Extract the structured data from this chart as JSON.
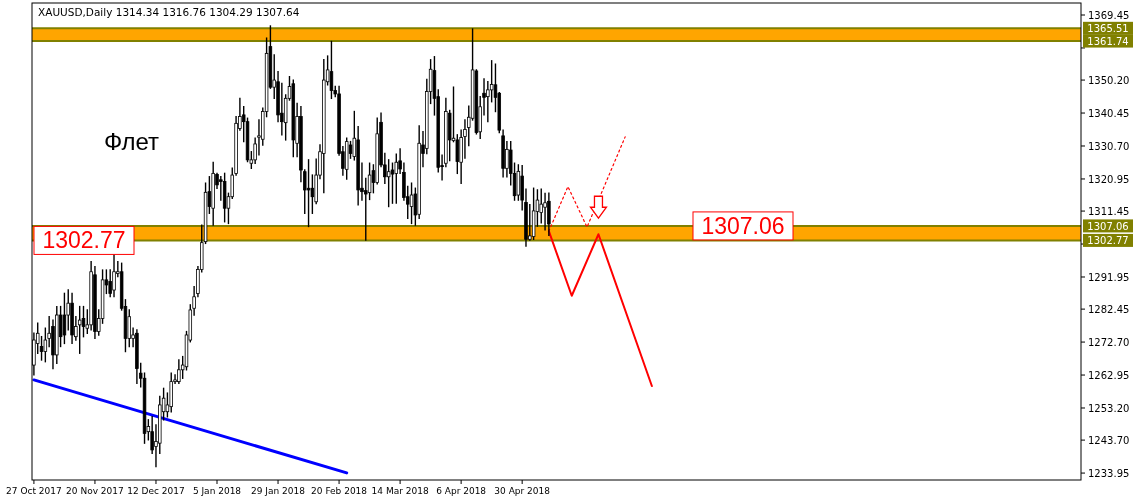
{
  "chart_data": {
    "type": "candlestick",
    "title": "XAUUSD,Daily 1314.34 1316.76 1304.29 1307.64",
    "categories": [
      "27 Oct 2017",
      null,
      null,
      null,
      null,
      null,
      null,
      null,
      null,
      null,
      null,
      null,
      null,
      null,
      null,
      null,
      "20 Nov 2017",
      null,
      null,
      null,
      null,
      null,
      null,
      null,
      null,
      null,
      null,
      null,
      null,
      null,
      null,
      null,
      "12 Dec 2017",
      null,
      null,
      null,
      null,
      null,
      null,
      null,
      null,
      null,
      null,
      null,
      null,
      null,
      null,
      null,
      "5 Jan 2018",
      null,
      null,
      null,
      null,
      null,
      null,
      null,
      null,
      null,
      null,
      null,
      null,
      null,
      null,
      null,
      "29 Jan 2018",
      null,
      null,
      null,
      null,
      null,
      null,
      null,
      null,
      null,
      null,
      null,
      null,
      null,
      null,
      null,
      "20 Feb 2018",
      null,
      null,
      null,
      null,
      null,
      null,
      null,
      null,
      null,
      null,
      null,
      null,
      null,
      null,
      null,
      "14 Mar 2018",
      null,
      null,
      null,
      null,
      null,
      null,
      null,
      null,
      null,
      null,
      null,
      null,
      null,
      null,
      null,
      "6 Apr 2018",
      null,
      null,
      null,
      null,
      null,
      null,
      null,
      null,
      null,
      null,
      null,
      null,
      null,
      null,
      null,
      "30 Apr 2018",
      null,
      null,
      null,
      null,
      null,
      null,
      null,
      null,
      null,
      null,
      null,
      null,
      null,
      null,
      null,
      null,
      null,
      null,
      null,
      null,
      null,
      null,
      null,
      null,
      null,
      null,
      null,
      null,
      null,
      null,
      null,
      null,
      null,
      null,
      null,
      null,
      null,
      null,
      null,
      null,
      null,
      null,
      null,
      null,
      null,
      null,
      null,
      null,
      null,
      null,
      null,
      null,
      null,
      null,
      null,
      null,
      null,
      null,
      null,
      null,
      null,
      null,
      null,
      null,
      null,
      null,
      null,
      null,
      null,
      null,
      null,
      null,
      null,
      null,
      null,
      null,
      null,
      null,
      null,
      null,
      null,
      null,
      null,
      null,
      null,
      null,
      null,
      null,
      null,
      null,
      null,
      null,
      null,
      null,
      null,
      null,
      null,
      null,
      null,
      null,
      null,
      null,
      null,
      null,
      null,
      null,
      null,
      null,
      null,
      null,
      null,
      null,
      null,
      null,
      null,
      null,
      null,
      null,
      null,
      null,
      null,
      null,
      null,
      null,
      null,
      null,
      null,
      null,
      null,
      null,
      null,
      null,
      null,
      null,
      null,
      null,
      null,
      null,
      null,
      null,
      null,
      null,
      null,
      null,
      null,
      null
    ],
    "ohlc": [
      [
        1265.9,
        1275.3,
        1263.0,
        1273.3
      ],
      [
        1272.3,
        1278.3,
        1269.4,
        1275.3
      ],
      [
        1271.4,
        1274.3,
        1267.4,
        1269.9
      ],
      [
        1269.9,
        1276.8,
        1266.9,
        1273.3
      ],
      [
        1273.8,
        1280.2,
        1271.4,
        1275.3
      ],
      [
        1277.3,
        1279.2,
        1264.9,
        1268.9
      ],
      [
        1268.9,
        1283.2,
        1266.4,
        1280.7
      ],
      [
        1280.7,
        1283.2,
        1271.4,
        1274.3
      ],
      [
        1280.7,
        1287.1,
        1272.3,
        1274.8
      ],
      [
        1280.7,
        1288.1,
        1276.3,
        1284.2
      ],
      [
        1284.2,
        1287.1,
        1272.3,
        1274.8
      ],
      [
        1274.3,
        1280.2,
        1273.3,
        1277.3
      ],
      [
        1277.8,
        1283.2,
        1269.4,
        1279.2
      ],
      [
        1279.7,
        1283.2,
        1274.3,
        1277.3
      ],
      [
        1276.8,
        1282.2,
        1275.3,
        1277.8
      ],
      [
        1277.8,
        1296.5,
        1276.3,
        1293.5
      ],
      [
        1292.6,
        1295.0,
        1273.8,
        1275.8
      ],
      [
        1275.8,
        1282.2,
        1274.8,
        1279.7
      ],
      [
        1279.7,
        1294.0,
        1278.3,
        1291.1
      ],
      [
        1291.1,
        1294.0,
        1287.1,
        1289.6
      ],
      [
        1290.6,
        1294.0,
        1286.2,
        1287.1
      ],
      [
        1288.1,
        1299.0,
        1286.2,
        1293.5
      ],
      [
        1293.0,
        1296.5,
        1292.1,
        1293.5
      ],
      [
        1293.5,
        1296.0,
        1282.2,
        1282.7
      ],
      [
        1283.2,
        1285.2,
        1269.9,
        1273.8
      ],
      [
        1273.8,
        1282.2,
        1271.4,
        1280.2
      ],
      [
        1273.8,
        1276.8,
        1271.4,
        1274.8
      ],
      [
        1275.3,
        1276.3,
        1260.5,
        1264.9
      ],
      [
        1263.5,
        1266.4,
        1259.5,
        1262.0
      ],
      [
        1262.0,
        1263.5,
        1242.8,
        1245.7
      ],
      [
        1246.2,
        1249.7,
        1243.8,
        1247.7
      ],
      [
        1246.2,
        1250.6,
        1239.8,
        1240.8
      ],
      [
        1241.8,
        1248.2,
        1235.9,
        1243.3
      ],
      [
        1242.8,
        1256.6,
        1239.8,
        1254.1
      ],
      [
        1252.1,
        1259.0,
        1249.7,
        1256.1
      ],
      [
        1252.1,
        1257.6,
        1250.6,
        1254.1
      ],
      [
        1253.6,
        1263.5,
        1252.1,
        1261.0
      ],
      [
        1261.0,
        1263.0,
        1260.5,
        1261.5
      ],
      [
        1261.0,
        1267.4,
        1260.5,
        1264.5
      ],
      [
        1264.5,
        1268.4,
        1262.0,
        1265.9
      ],
      [
        1265.4,
        1275.8,
        1264.5,
        1274.8
      ],
      [
        1273.3,
        1283.7,
        1272.8,
        1282.2
      ],
      [
        1282.7,
        1289.1,
        1280.7,
        1286.1
      ],
      [
        1287.1,
        1295.0,
        1286.2,
        1294.2
      ],
      [
        1294.2,
        1307.3,
        1293.5,
        1302.1
      ],
      [
        1302.4,
        1319.7,
        1301.9,
        1317.0
      ],
      [
        1317.2,
        1321.6,
        1310.8,
        1312.8
      ],
      [
        1312.3,
        1325.8,
        1307.3,
        1322.6
      ],
      [
        1322.3,
        1322.6,
        1318.2,
        1319.2
      ],
      [
        1320.7,
        1321.6,
        1314.7,
        1320.2
      ],
      [
        1320.2,
        1322.6,
        1308.3,
        1312.3
      ],
      [
        1312.3,
        1316.7,
        1307.8,
        1315.7
      ],
      [
        1315.7,
        1324.1,
        1315.2,
        1322.1
      ],
      [
        1322.6,
        1339.4,
        1322.1,
        1337.4
      ],
      [
        1335.9,
        1344.8,
        1335.4,
        1339.4
      ],
      [
        1339.9,
        1342.3,
        1332.0,
        1337.9
      ],
      [
        1337.9,
        1338.9,
        1326.1,
        1326.6
      ],
      [
        1325.6,
        1329.0,
        1324.1,
        1326.6
      ],
      [
        1326.6,
        1333.0,
        1325.6,
        1331.3
      ],
      [
        1333.3,
        1338.4,
        1328.1,
        1333.7
      ],
      [
        1332.7,
        1341.9,
        1331.0,
        1340.9
      ],
      [
        1340.9,
        1362.6,
        1339.4,
        1358.1
      ],
      [
        1360.1,
        1366.2,
        1347.8,
        1348.1
      ],
      [
        1348.1,
        1357.6,
        1344.8,
        1350.2
      ],
      [
        1349.7,
        1352.7,
        1337.9,
        1339.9
      ],
      [
        1340.4,
        1349.2,
        1334.0,
        1337.9
      ],
      [
        1337.6,
        1345.8,
        1332.5,
        1344.8
      ],
      [
        1344.8,
        1351.2,
        1344.3,
        1348.3
      ],
      [
        1349.1,
        1350.2,
        1327.6,
        1332.5
      ],
      [
        1331.5,
        1343.3,
        1327.6,
        1339.4
      ],
      [
        1339.4,
        1342.3,
        1320.2,
        1323.6
      ],
      [
        1323.1,
        1323.6,
        1310.8,
        1317.7
      ],
      [
        1318.2,
        1326.6,
        1306.9,
        1317.7
      ],
      [
        1318.2,
        1322.1,
        1310.8,
        1315.7
      ],
      [
        1314.2,
        1326.8,
        1313.7,
        1322.1
      ],
      [
        1322.1,
        1331.0,
        1321.1,
        1329.0
      ],
      [
        1328.5,
        1356.2,
        1316.9,
        1350.2
      ],
      [
        1349.7,
        1357.3,
        1348.8,
        1353.2
      ],
      [
        1352.7,
        1361.6,
        1344.8,
        1347.1
      ],
      [
        1347.1,
        1348.3,
        1345.3,
        1346.1
      ],
      [
        1346.1,
        1348.3,
        1328.0,
        1328.5
      ],
      [
        1329.0,
        1330.5,
        1322.1,
        1324.1
      ],
      [
        1323.8,
        1333.0,
        1320.9,
        1332.0
      ],
      [
        1331.0,
        1332.0,
        1327.1,
        1328.5
      ],
      [
        1327.6,
        1340.9,
        1326.6,
        1333.0
      ],
      [
        1332.5,
        1336.4,
        1313.3,
        1317.7
      ],
      [
        1318.2,
        1325.6,
        1314.7,
        1317.2
      ],
      [
        1317.5,
        1321.1,
        1302.9,
        1316.5
      ],
      [
        1316.9,
        1325.6,
        1314.9,
        1322.1
      ],
      [
        1323.4,
        1325.1,
        1316.9,
        1319.9
      ],
      [
        1319.9,
        1338.9,
        1319.5,
        1334.3
      ],
      [
        1337.7,
        1340.4,
        1324.6,
        1325.1
      ],
      [
        1325.1,
        1328.5,
        1319.7,
        1321.6
      ],
      [
        1321.6,
        1326.6,
        1312.8,
        1323.1
      ],
      [
        1323.6,
        1325.6,
        1313.8,
        1322.4
      ],
      [
        1322.6,
        1328.3,
        1313.8,
        1325.9
      ],
      [
        1326.3,
        1329.8,
        1322.6,
        1323.9
      ],
      [
        1322.9,
        1325.6,
        1314.7,
        1315.5
      ],
      [
        1315.7,
        1318.7,
        1309.3,
        1313.5
      ],
      [
        1312.8,
        1319.7,
        1307.8,
        1316.2
      ],
      [
        1316.5,
        1318.2,
        1307.3,
        1310.3
      ],
      [
        1310.5,
        1336.6,
        1309.3,
        1331.5
      ],
      [
        1331.0,
        1334.9,
        1324.6,
        1328.5
      ],
      [
        1330.0,
        1350.4,
        1328.5,
        1346.8
      ],
      [
        1346.8,
        1356.2,
        1343.3,
        1353.4
      ],
      [
        1353.0,
        1357.1,
        1339.9,
        1344.8
      ],
      [
        1345.3,
        1347.3,
        1323.1,
        1324.4
      ],
      [
        1324.9,
        1328.0,
        1320.7,
        1324.6
      ],
      [
        1325.6,
        1344.8,
        1324.6,
        1340.9
      ],
      [
        1340.4,
        1341.2,
        1326.4,
        1332.5
      ],
      [
        1332.3,
        1348.1,
        1332.0,
        1333.0
      ],
      [
        1332.5,
        1334.0,
        1322.6,
        1326.1
      ],
      [
        1325.9,
        1335.4,
        1319.7,
        1333.2
      ],
      [
        1333.5,
        1338.4,
        1327.1,
        1335.6
      ],
      [
        1336.2,
        1342.5,
        1330.8,
        1339.2
      ],
      [
        1338.9,
        1365.3,
        1338.4,
        1353.2
      ],
      [
        1352.9,
        1353.2,
        1334.3,
        1334.7
      ],
      [
        1334.9,
        1345.3,
        1333.0,
        1342.3
      ],
      [
        1346.3,
        1350.5,
        1339.9,
        1345.1
      ],
      [
        1345.3,
        1349.7,
        1337.9,
        1347.3
      ],
      [
        1347.3,
        1355.9,
        1343.8,
        1348.9
      ],
      [
        1348.8,
        1354.9,
        1340.9,
        1345.1
      ],
      [
        1346.3,
        1346.5,
        1334.7,
        1335.4
      ],
      [
        1333.7,
        1335.4,
        1321.6,
        1324.1
      ],
      [
        1324.1,
        1332.0,
        1321.6,
        1329.7
      ],
      [
        1329.5,
        1332.0,
        1319.2,
        1322.6
      ],
      [
        1322.6,
        1325.6,
        1314.7,
        1316.0
      ],
      [
        1316.2,
        1325.1,
        1314.7,
        1323.2
      ],
      [
        1321.8,
        1324.9,
        1311.8,
        1314.7
      ],
      [
        1314.0,
        1317.9,
        1301.1,
        1303.1
      ],
      [
        1303.1,
        1313.3,
        1302.9,
        1304.1
      ],
      [
        1303.9,
        1318.2,
        1303.1,
        1311.5
      ],
      [
        1311.3,
        1317.7,
        1307.0,
        1314.7
      ],
      [
        1311.0,
        1317.9,
        1308.0,
        1313.5
      ],
      [
        1312.6,
        1316.7,
        1305.9,
        1313.9
      ],
      [
        1314.34,
        1316.76,
        1304.29,
        1307.64
      ],
      null,
      null,
      null,
      null,
      null,
      null,
      null,
      null,
      null,
      null,
      null,
      null,
      null,
      null,
      null,
      null,
      null,
      null,
      null,
      null,
      null,
      null,
      null,
      null,
      null,
      null,
      null,
      null,
      null,
      null,
      null,
      null,
      null,
      null,
      null,
      null,
      null,
      null,
      null,
      null,
      null,
      null,
      null,
      null,
      null,
      null,
      null,
      null,
      null,
      null,
      null,
      null,
      null,
      null,
      null,
      null,
      null,
      null,
      null,
      null,
      null,
      null,
      null,
      null,
      null,
      null,
      null,
      null,
      null,
      null,
      null,
      null,
      null,
      null,
      null,
      null,
      null,
      null,
      null,
      null,
      null,
      null,
      null,
      null,
      null,
      null,
      null,
      null,
      null,
      null,
      null,
      null,
      null,
      null,
      null,
      null,
      null,
      null,
      null,
      null,
      null,
      null,
      null,
      null,
      null,
      null,
      null,
      null,
      null,
      null,
      null,
      null,
      null,
      null,
      null,
      null,
      null,
      null,
      null,
      null,
      null,
      null,
      null,
      null,
      null,
      null,
      null,
      null,
      null,
      null,
      null,
      null,
      null,
      null,
      null,
      null,
      null,
      null,
      null
    ],
    "series": [
      {
        "type": "line",
        "color": "#ff0000",
        "line_style": "solid",
        "values": [
          null,
          null,
          null,
          null,
          null,
          null,
          null,
          null,
          null,
          null,
          null,
          null,
          null,
          null,
          null,
          null,
          null,
          null,
          null,
          null,
          null,
          null,
          null,
          null,
          null,
          null,
          null,
          null,
          null,
          null,
          null,
          null,
          null,
          null,
          null,
          null,
          null,
          null,
          null,
          null,
          null,
          null,
          null,
          null,
          null,
          null,
          null,
          null,
          null,
          null,
          null,
          null,
          null,
          null,
          null,
          null,
          null,
          null,
          null,
          null,
          null,
          null,
          null,
          null,
          null,
          null,
          null,
          null,
          null,
          null,
          null,
          null,
          null,
          null,
          null,
          null,
          null,
          null,
          null,
          null,
          null,
          null,
          null,
          null,
          null,
          null,
          null,
          null,
          null,
          null,
          null,
          null,
          null,
          null,
          null,
          null,
          null,
          null,
          null,
          null,
          null,
          null,
          null,
          null,
          null,
          null,
          null,
          null,
          null,
          null,
          null,
          null,
          null,
          null,
          null,
          null,
          null,
          null,
          null,
          null,
          null,
          null,
          null,
          null,
          null,
          null,
          null,
          null,
          null,
          null,
          null,
          null,
          null,
          null,
          null,
          1305.5,
          null,
          null,
          null,
          null,
          null,
          1286.4,
          null,
          null,
          null,
          null,
          null,
          null,
          1304.6,
          null,
          null,
          null,
          null,
          null,
          null,
          null,
          null,
          null,
          null,
          null,
          null,
          null,
          1259.7,
          null,
          null,
          null,
          null,
          null,
          null,
          null,
          null,
          null,
          null,
          null,
          null,
          null,
          null,
          null,
          null,
          null,
          null,
          null,
          null,
          null,
          null,
          null,
          null,
          null,
          null,
          null,
          null,
          null,
          null,
          null,
          null,
          null,
          null,
          null,
          null,
          null,
          null,
          null,
          null,
          null,
          null,
          null,
          null,
          null,
          null,
          null,
          null,
          null,
          null,
          null,
          null,
          null,
          null,
          null,
          null,
          null,
          null,
          null,
          null,
          null,
          null,
          null,
          null,
          null,
          null,
          null,
          null,
          null,
          null,
          null,
          null,
          null,
          null,
          null,
          null,
          null,
          null,
          null,
          null,
          null,
          null,
          null,
          null,
          null,
          null,
          null,
          null,
          null,
          null,
          null,
          null,
          null,
          null,
          null,
          null,
          null,
          null,
          null,
          null,
          null,
          null,
          null,
          null,
          null,
          null,
          null,
          null,
          null,
          null,
          null,
          null
        ]
      },
      {
        "type": "line",
        "color": "#ff0000",
        "line_style": "dotted",
        "values": [
          null,
          null,
          null,
          null,
          null,
          null,
          null,
          null,
          null,
          null,
          null,
          null,
          null,
          null,
          null,
          null,
          null,
          null,
          null,
          null,
          null,
          null,
          null,
          null,
          null,
          null,
          null,
          null,
          null,
          null,
          null,
          null,
          null,
          null,
          null,
          null,
          null,
          null,
          null,
          null,
          null,
          null,
          null,
          null,
          null,
          null,
          null,
          null,
          null,
          null,
          null,
          null,
          null,
          null,
          null,
          null,
          null,
          null,
          null,
          null,
          null,
          null,
          null,
          null,
          null,
          null,
          null,
          null,
          null,
          null,
          null,
          null,
          null,
          null,
          null,
          null,
          null,
          null,
          null,
          null,
          null,
          null,
          null,
          null,
          null,
          null,
          null,
          null,
          null,
          null,
          null,
          null,
          null,
          null,
          null,
          null,
          null,
          null,
          null,
          null,
          null,
          null,
          null,
          null,
          null,
          null,
          null,
          null,
          null,
          null,
          null,
          null,
          null,
          null,
          null,
          null,
          null,
          null,
          null,
          null,
          null,
          null,
          null,
          null,
          null,
          null,
          null,
          null,
          null,
          null,
          null,
          null,
          null,
          null,
          null,
          1305.5,
          null,
          null,
          null,
          null,
          1318.7,
          null,
          null,
          null,
          null,
          1306.7,
          null,
          null,
          null,
          null,
          null,
          null,
          null,
          null,
          null,
          1333.4,
          null,
          null,
          null,
          null,
          null,
          null,
          null,
          null,
          null,
          null,
          null,
          null,
          null,
          null,
          null,
          null,
          null,
          null,
          null,
          null,
          null,
          null,
          null,
          null,
          null,
          null,
          null,
          null,
          null,
          null,
          null,
          null,
          null,
          null,
          null,
          null,
          null,
          null,
          null,
          null,
          null,
          null,
          null,
          null,
          null,
          null,
          null,
          null,
          null,
          null,
          null,
          null,
          null,
          null,
          null,
          null,
          null,
          null,
          null,
          null,
          null,
          null,
          null,
          null,
          null,
          null,
          null,
          null,
          null,
          null,
          null,
          null,
          null,
          null,
          null,
          null,
          null,
          null,
          null,
          null,
          null,
          null,
          null,
          null,
          null,
          null,
          null,
          null,
          null,
          null,
          null,
          null,
          null,
          null,
          null,
          null,
          null,
          null,
          null,
          null,
          null,
          null,
          null,
          null,
          null,
          null,
          null,
          null,
          null,
          null,
          null,
          null,
          null,
          null,
          null,
          null,
          null,
          null,
          null
        ]
      },
      {
        "type": "line",
        "color": "#0000ff",
        "line_style": "solid",
        "values": [
          1261.5,
          null,
          null,
          null,
          null,
          null,
          null,
          null,
          null,
          null,
          null,
          null,
          null,
          null,
          null,
          null,
          null,
          null,
          null,
          null,
          null,
          null,
          null,
          null,
          null,
          null,
          null,
          null,
          null,
          null,
          null,
          null,
          null,
          null,
          null,
          null,
          null,
          null,
          null,
          null,
          null,
          null,
          null,
          null,
          null,
          null,
          null,
          null,
          null,
          null,
          null,
          null,
          null,
          null,
          null,
          null,
          null,
          null,
          null,
          null,
          null,
          null,
          null,
          null,
          null,
          null,
          null,
          null,
          null,
          null,
          null,
          null,
          null,
          null,
          null,
          null,
          null,
          null,
          null,
          null,
          null,
          null,
          1234.0,
          null,
          null,
          null,
          null,
          null,
          null,
          null,
          null,
          null,
          null,
          null,
          null,
          null,
          null,
          null,
          null,
          null,
          null,
          null,
          null,
          null,
          null,
          null,
          null,
          null,
          null,
          null,
          null,
          null,
          null,
          null,
          null,
          null,
          null,
          null,
          null,
          null,
          null,
          null,
          null,
          null,
          null,
          null,
          null,
          null,
          null,
          null,
          null,
          null,
          null,
          null,
          null,
          null,
          null,
          null,
          null,
          null,
          null,
          null,
          null,
          null,
          null,
          null,
          null,
          null,
          null,
          null,
          null,
          null,
          null,
          null,
          null,
          null,
          null,
          null,
          null,
          null,
          null,
          null,
          null,
          null,
          null,
          null,
          null,
          null,
          null,
          null,
          null,
          null,
          null,
          null,
          null,
          null,
          null,
          null,
          null,
          null,
          null,
          null,
          null,
          null,
          null,
          null,
          null,
          null,
          null,
          null,
          null,
          null,
          null,
          null,
          null,
          null,
          null,
          null,
          null,
          null,
          null,
          null,
          null,
          null,
          null,
          null,
          null,
          null,
          null,
          null,
          null,
          null,
          null,
          null,
          null,
          null,
          null,
          null,
          null,
          null,
          null,
          null,
          null,
          null,
          null,
          null,
          null,
          null,
          null,
          null,
          null,
          null,
          null,
          null,
          null,
          null,
          null,
          null,
          null,
          null,
          null,
          null,
          null,
          null,
          null,
          null,
          null,
          null,
          null,
          null,
          null,
          null,
          null,
          null,
          null,
          null,
          null,
          null,
          null,
          null,
          null,
          null,
          null,
          null,
          null,
          null,
          null,
          null,
          null,
          null,
          null,
          null,
          null,
          null,
          null
        ]
      }
    ],
    "ylim": [
      1231.9,
      1373.0
    ],
    "yticks": [
      1369.45,
      {
        "value": 1359.7,
        "label": null
      },
      {
        "value": 1350.2,
        "label": "1350.20"
      },
      1340.45,
      {
        "value": 1330.7,
        "label": "1330.70"
      },
      1320.95,
      1311.45,
      {
        "value": 1301.7,
        "label": null
      },
      1291.95,
      1282.45,
      {
        "value": 1272.7,
        "label": "1272.70"
      },
      1262.95,
      {
        "value": 1253.2,
        "label": "1253.20"
      },
      {
        "value": 1243.7,
        "label": "1243.70"
      },
      1233.95
    ],
    "ref_lines": [
      {
        "axis": "y",
        "value": 1365.51,
        "color": "#808000",
        "label": "1365.51"
      },
      {
        "axis": "y",
        "value": 1361.74,
        "color": "#808000",
        "label": "1361.74"
      },
      {
        "axis": "y",
        "value": 1307.06,
        "color": "#808000",
        "label": "1307.06"
      },
      {
        "axis": "y",
        "value": 1302.77,
        "color": "#808000",
        "label": "1302.77"
      }
    ],
    "bands": [
      {
        "axis": "y",
        "from": 1361.74,
        "to": 1365.51,
        "color": "#ffa500"
      },
      {
        "axis": "y",
        "from": 1302.77,
        "to": 1307.06,
        "color": "#ffa500"
      }
    ],
    "annotations": [
      "Флет",
      {
        "text": "1302.77",
        "y": 1302.77
      },
      {
        "text": "1307.06",
        "y": 1307.06
      }
    ]
  }
}
